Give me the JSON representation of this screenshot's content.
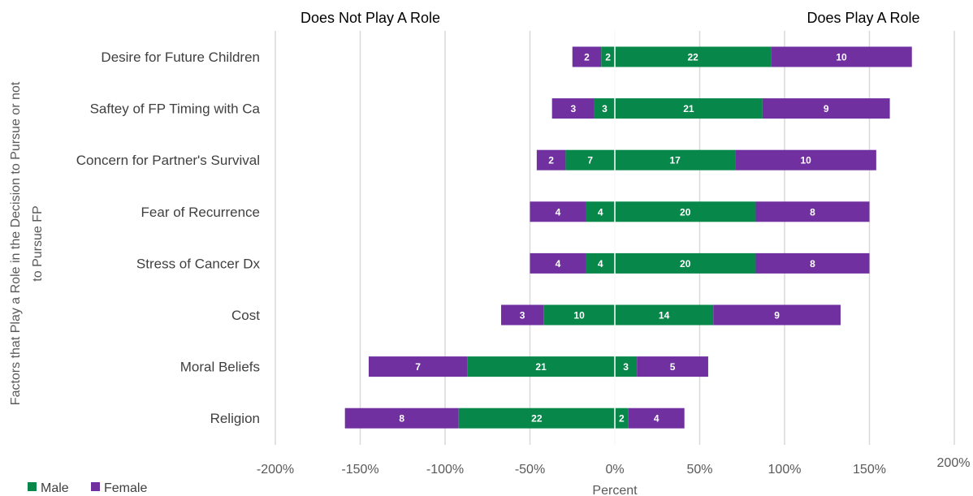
{
  "chart_data": {
    "type": "bar",
    "orientation": "horizontal",
    "stacked": "diverging",
    "header_left": "Does Not Play A Role",
    "header_right": "Does Play A Role",
    "ylabel": "Factors that Play a Role in the Decision to Pursue or not to Pursue FP",
    "xlabel": "Percent",
    "xlim": [
      -200,
      200
    ],
    "x_ticks": [
      "-200%",
      "-150%",
      "-100%",
      "-50%",
      "0%",
      "50%",
      "100%",
      "150%",
      "200%"
    ],
    "grid": "vertical",
    "legend_position": "bottom-left",
    "categories": [
      "Desire for Future Children",
      "Saftey of FP Timing with Ca",
      "Concern for Partner's Survival",
      "Fear of Recurrence",
      "Stress of Cancer Dx",
      "Cost",
      "Moral Beliefs",
      "Religion"
    ],
    "series": [
      {
        "name": "Male",
        "color": "#07874a",
        "no_counts": [
          2,
          3,
          7,
          4,
          4,
          10,
          21,
          22
        ],
        "yes_counts": [
          22,
          21,
          17,
          20,
          20,
          14,
          3,
          2
        ],
        "no_percent": [
          -8,
          -12,
          -29,
          -17,
          -17,
          -42,
          -87,
          -92
        ],
        "yes_percent": [
          92,
          87,
          71,
          83,
          83,
          58,
          13,
          8
        ]
      },
      {
        "name": "Female",
        "color": "#7030a0",
        "no_counts": [
          2,
          3,
          2,
          4,
          4,
          3,
          7,
          8
        ],
        "yes_counts": [
          10,
          9,
          10,
          8,
          8,
          9,
          5,
          4
        ],
        "no_percent": [
          -17,
          -25,
          -17,
          -33,
          -33,
          -25,
          -58,
          -67
        ],
        "yes_percent": [
          83,
          75,
          83,
          67,
          67,
          75,
          42,
          33
        ]
      }
    ]
  }
}
